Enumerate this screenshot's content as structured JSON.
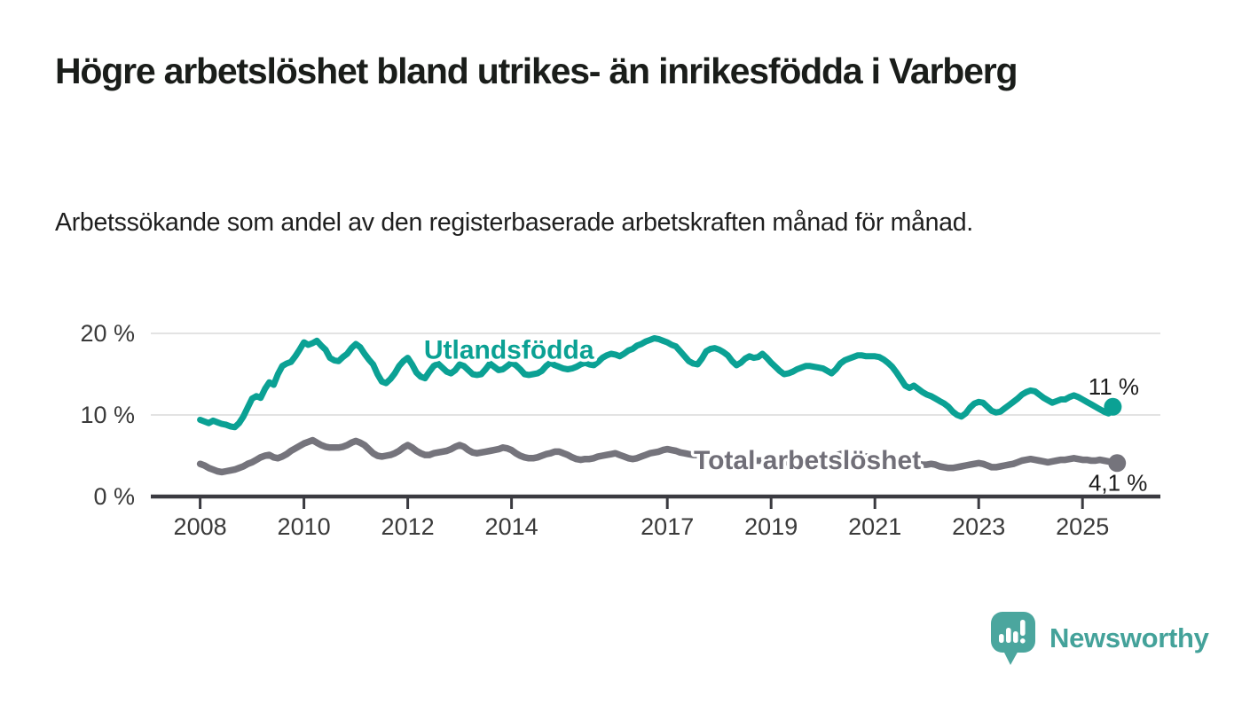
{
  "header": {
    "title": "Högre arbetslöshet bland utrikes- än inrikesfödda i Varberg",
    "subtitle": "Arbetssökande som andel av den registerbaserade arbetskraften månad för månad."
  },
  "branding": {
    "name": "Newsworthy",
    "color": "#44a29a",
    "icon": "speech-bubble-bar-chart-icon",
    "icon_color": "#4ba69e"
  },
  "colors": {
    "accent_teal": "#0ba194",
    "series_gray": "#75747c",
    "gridline": "#e3e3e3",
    "axis": "#3a3a40",
    "axis_text": "#3a3a3a",
    "value_label_text": "#1c1c1c"
  },
  "chart_data": {
    "type": "line",
    "title": "",
    "xlabel": "",
    "ylabel": "",
    "x_unit": "decimal_year_monthly",
    "xlim": [
      2007.05,
      2026.5
    ],
    "ylim": [
      0,
      20
    ],
    "grid": "horizontal",
    "legend_position": "inline-labels",
    "y_ticks": [
      {
        "v": 0,
        "label": "0 %"
      },
      {
        "v": 10,
        "label": "10 %"
      },
      {
        "v": 20,
        "label": "20 %"
      }
    ],
    "x_ticks": [
      {
        "v": 2008,
        "label": "2008"
      },
      {
        "v": 2010,
        "label": "2010"
      },
      {
        "v": 2012,
        "label": "2012"
      },
      {
        "v": 2014,
        "label": "2014"
      },
      {
        "v": 2017,
        "label": "2017"
      },
      {
        "v": 2019,
        "label": "2019"
      },
      {
        "v": 2021,
        "label": "2021"
      },
      {
        "v": 2023,
        "label": "2023"
      },
      {
        "v": 2025,
        "label": "2025"
      }
    ],
    "series": [
      {
        "name": "Utlandsfödda",
        "color": "#0ba194",
        "label_color": "#0ba194",
        "stroke_width": 7,
        "start_year": 2008,
        "interval_months": 1,
        "end_value_label": "11 %",
        "end_label_position": "above",
        "inline_label": {
          "text": "Utlandsfödda",
          "x": 2013.95,
          "y": 18.0
        },
        "values": [
          9.4,
          9.2,
          9.0,
          9.3,
          9.1,
          8.9,
          8.8,
          8.6,
          8.5,
          9.0,
          9.8,
          10.9,
          12.0,
          12.3,
          12.1,
          13.2,
          14.0,
          13.7,
          15.0,
          16.0,
          16.3,
          16.5,
          17.2,
          18.0,
          18.9,
          18.6,
          18.8,
          19.1,
          18.5,
          18.0,
          17.0,
          16.7,
          16.6,
          17.1,
          17.5,
          18.2,
          18.7,
          18.3,
          17.5,
          16.8,
          16.2,
          15.0,
          14.1,
          13.9,
          14.4,
          15.1,
          16.0,
          16.6,
          17.0,
          16.2,
          15.2,
          14.7,
          14.5,
          15.3,
          16.0,
          16.3,
          15.8,
          15.3,
          15.1,
          15.5,
          16.2,
          16.0,
          15.5,
          15.0,
          14.9,
          15.0,
          15.6,
          16.3,
          15.9,
          15.5,
          15.6,
          16.0,
          16.4,
          16.1,
          15.6,
          15.0,
          14.9,
          15.0,
          15.1,
          15.4,
          16.0,
          16.4,
          16.1,
          15.9,
          15.7,
          15.6,
          15.7,
          15.9,
          16.2,
          16.4,
          16.2,
          16.1,
          16.5,
          17.0,
          17.3,
          17.5,
          17.4,
          17.2,
          17.5,
          17.9,
          18.1,
          18.5,
          18.7,
          19.0,
          19.2,
          19.4,
          19.3,
          19.1,
          18.9,
          18.6,
          18.4,
          17.8,
          17.2,
          16.6,
          16.3,
          16.2,
          16.9,
          17.8,
          18.1,
          18.2,
          18.0,
          17.7,
          17.3,
          16.6,
          16.1,
          16.4,
          16.9,
          17.2,
          17.0,
          17.1,
          17.5,
          17.0,
          16.4,
          15.9,
          15.4,
          15.0,
          15.1,
          15.3,
          15.6,
          15.8,
          16.0,
          16.0,
          15.9,
          15.8,
          15.7,
          15.4,
          15.1,
          15.6,
          16.3,
          16.7,
          16.9,
          17.1,
          17.3,
          17.3,
          17.2,
          17.2,
          17.2,
          17.1,
          16.8,
          16.4,
          15.9,
          15.2,
          14.4,
          13.6,
          13.3,
          13.6,
          13.2,
          12.8,
          12.5,
          12.3,
          12.0,
          11.7,
          11.4,
          11.0,
          10.4,
          10.0,
          9.8,
          10.2,
          10.9,
          11.4,
          11.6,
          11.5,
          11.0,
          10.5,
          10.3,
          10.4,
          10.8,
          11.2,
          11.6,
          12.0,
          12.5,
          12.8,
          13.0,
          12.9,
          12.5,
          12.1,
          11.8,
          11.5,
          11.7,
          11.9,
          11.9,
          12.2,
          12.4,
          12.2,
          11.9,
          11.6,
          11.3,
          11.0,
          10.7,
          10.4,
          10.2,
          11.0
        ]
      },
      {
        "name": "Total arbetslöshet",
        "color": "#75747c",
        "label_color": "#716f78",
        "stroke_width": 7.5,
        "start_year": 2008,
        "interval_months": 1,
        "end_value_label": "4,1 %",
        "end_label_position": "below",
        "inline_label": {
          "text": "Total arbetslöshet",
          "x": 2019.7,
          "y": 4.45
        },
        "values": [
          4.0,
          3.8,
          3.5,
          3.3,
          3.1,
          3.0,
          3.1,
          3.2,
          3.3,
          3.5,
          3.7,
          4.0,
          4.2,
          4.5,
          4.8,
          5.0,
          5.1,
          4.8,
          4.7,
          4.9,
          5.2,
          5.6,
          5.9,
          6.2,
          6.5,
          6.7,
          6.9,
          6.6,
          6.3,
          6.1,
          6.0,
          6.0,
          6.0,
          6.1,
          6.3,
          6.6,
          6.8,
          6.6,
          6.3,
          5.8,
          5.3,
          5.0,
          4.9,
          5.0,
          5.1,
          5.3,
          5.6,
          6.0,
          6.3,
          6.0,
          5.6,
          5.3,
          5.1,
          5.1,
          5.3,
          5.4,
          5.5,
          5.6,
          5.8,
          6.1,
          6.3,
          6.1,
          5.7,
          5.4,
          5.3,
          5.4,
          5.5,
          5.6,
          5.7,
          5.8,
          6.0,
          5.9,
          5.7,
          5.3,
          5.0,
          4.8,
          4.7,
          4.7,
          4.8,
          5.0,
          5.2,
          5.3,
          5.5,
          5.5,
          5.3,
          5.1,
          4.8,
          4.6,
          4.5,
          4.6,
          4.6,
          4.7,
          4.9,
          5.0,
          5.1,
          5.2,
          5.3,
          5.1,
          4.9,
          4.7,
          4.6,
          4.7,
          4.9,
          5.1,
          5.3,
          5.4,
          5.5,
          5.7,
          5.8,
          5.7,
          5.6,
          5.4,
          5.3,
          5.2,
          5.1,
          5.1,
          5.0,
          5.0,
          4.9,
          4.9,
          4.8,
          4.8,
          4.7,
          4.7,
          4.6,
          4.6,
          4.5,
          4.5,
          4.4,
          4.4,
          4.4,
          4.3,
          4.3,
          4.3,
          4.3,
          4.2,
          4.2,
          4.2,
          4.2,
          4.3,
          4.3,
          4.3,
          4.3,
          4.4,
          4.4,
          4.5,
          4.7,
          5.0,
          5.2,
          5.3,
          5.3,
          5.2,
          5.1,
          5.0,
          4.9,
          4.8,
          4.8,
          4.7,
          4.6,
          4.5,
          4.4,
          4.3,
          4.2,
          4.1,
          4.1,
          4.0,
          4.0,
          3.9,
          3.9,
          4.0,
          3.9,
          3.7,
          3.6,
          3.5,
          3.5,
          3.6,
          3.7,
          3.8,
          3.9,
          4.0,
          4.1,
          4.0,
          3.8,
          3.6,
          3.6,
          3.7,
          3.8,
          3.9,
          4.0,
          4.2,
          4.4,
          4.5,
          4.6,
          4.5,
          4.4,
          4.3,
          4.2,
          4.3,
          4.4,
          4.5,
          4.5,
          4.6,
          4.7,
          4.6,
          4.5,
          4.5,
          4.4,
          4.4,
          4.5,
          4.4,
          4.3,
          4.2,
          4.1
        ]
      }
    ]
  }
}
